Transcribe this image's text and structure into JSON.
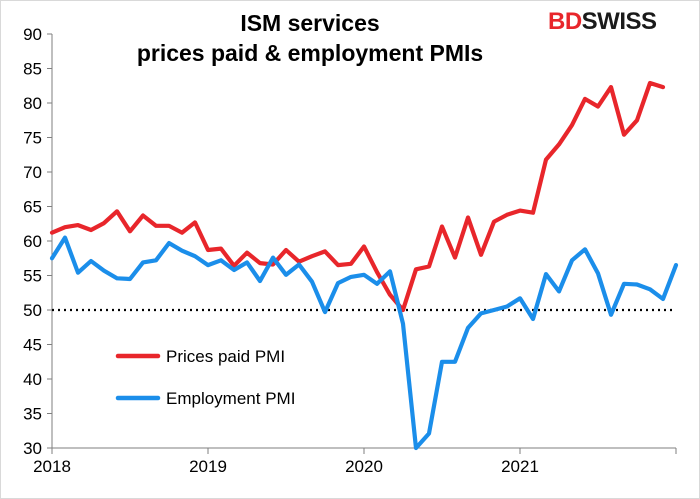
{
  "title_line1": "ISM services",
  "title_line2": "prices paid & employment PMIs",
  "logo": {
    "part1": "BD",
    "part2": "SWISS"
  },
  "chart_data": {
    "type": "line",
    "x_start_year": 2018,
    "x_end_year": 2022,
    "xticks": [
      "2018",
      "2019",
      "2020",
      "2021"
    ],
    "ylim": [
      30,
      90
    ],
    "yticks": [
      30,
      35,
      40,
      45,
      50,
      55,
      60,
      65,
      70,
      75,
      80,
      85,
      90
    ],
    "reference_line": {
      "y": 50,
      "style": "dotted"
    },
    "legend_position": "lower-left",
    "series": [
      {
        "name": "Prices paid PMI",
        "color": "#e8262b",
        "values": [
          61.2,
          62.0,
          62.3,
          61.6,
          62.6,
          64.3,
          61.4,
          63.7,
          62.2,
          62.2,
          61.2,
          62.7,
          58.7,
          58.9,
          56.4,
          58.3,
          56.8,
          56.6,
          58.7,
          57.0,
          57.8,
          58.5,
          56.5,
          56.7,
          59.2,
          55.5,
          52.2,
          50.0,
          55.9,
          56.3,
          62.1,
          57.6,
          63.4,
          58.0,
          62.8,
          63.8,
          64.4,
          64.1,
          71.8,
          74.0,
          76.8,
          80.6,
          79.5,
          82.3,
          75.4,
          77.5,
          82.9,
          82.3
        ]
      },
      {
        "name": "Employment PMI",
        "color": "#1b8eea",
        "values": [
          57.5,
          60.5,
          55.4,
          57.1,
          55.7,
          54.6,
          54.5,
          56.9,
          57.2,
          59.7,
          58.6,
          57.8,
          56.5,
          57.2,
          55.8,
          56.9,
          54.2,
          57.6,
          55.1,
          56.6,
          54.1,
          49.7,
          53.9,
          54.8,
          55.1,
          53.8,
          55.6,
          48.0,
          30.0,
          32.1,
          42.5,
          42.5,
          47.4,
          49.5,
          50.0,
          50.5,
          51.7,
          48.7,
          55.2,
          52.7,
          57.2,
          58.8,
          55.3,
          49.3,
          53.8,
          53.7,
          53.0,
          51.6,
          56.5
        ]
      }
    ]
  }
}
